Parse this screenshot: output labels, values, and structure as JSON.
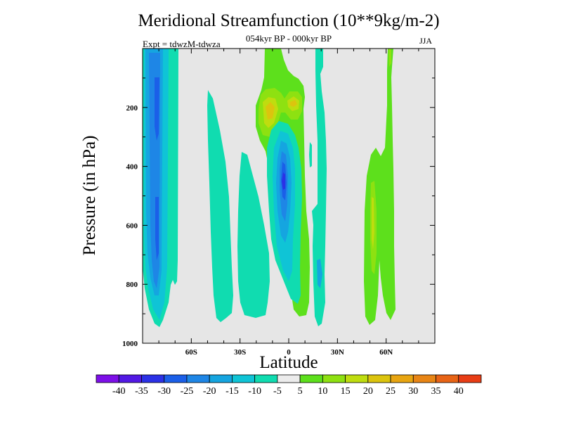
{
  "chart_data": {
    "type": "contour",
    "title": "Meridional Streamfunction (10**9kg/m-2)",
    "subtitle": "054kyr BP - 000kyr BP",
    "experiment_label": "Expt = tdwzM-tdwza",
    "season": "JJA",
    "xlabel": "Latitude",
    "ylabel": "Pressure (in hPa)",
    "xlim": [
      -90,
      90
    ],
    "ylim": [
      1000,
      0
    ],
    "y_scale": "linear-inverted",
    "x_ticks": [
      {
        "value": -60,
        "label": "60S"
      },
      {
        "value": -30,
        "label": "30S"
      },
      {
        "value": 0,
        "label": "0"
      },
      {
        "value": 30,
        "label": "30N"
      },
      {
        "value": 60,
        "label": "60N"
      }
    ],
    "y_ticks": [
      {
        "value": 200,
        "label": "200"
      },
      {
        "value": 400,
        "label": "400"
      },
      {
        "value": 600,
        "label": "600"
      },
      {
        "value": 800,
        "label": "800"
      },
      {
        "value": 1000,
        "label": "1000"
      }
    ],
    "background_color": "#e6e6e6",
    "colorbar": {
      "levels": [
        -40,
        -35,
        -30,
        -25,
        -20,
        -15,
        -10,
        -5,
        5,
        10,
        15,
        20,
        25,
        30,
        35,
        40
      ],
      "colors": [
        "#7d0fe8",
        "#5219e4",
        "#2b31e6",
        "#1b5fe8",
        "#1e86e6",
        "#15a5e0",
        "#0fc4d6",
        "#10dcb0",
        "#ececec",
        "#5de01c",
        "#8ee111",
        "#bfdd0f",
        "#dcc40e",
        "#e8a511",
        "#e88515",
        "#e86416",
        "#e83d15"
      ]
    },
    "features": [
      {
        "kind": "positive-cell",
        "label": "NH tropical upper cell",
        "lat_range": [
          -13,
          7
        ],
        "p_range": [
          20,
          280
        ],
        "peak_band": "15 to 20",
        "peak_lat": -11,
        "peak_p": 220
      },
      {
        "kind": "negative-cell",
        "label": "Equatorial mid-level cell",
        "lat_range": [
          -8,
          10
        ],
        "p_range": [
          280,
          910
        ],
        "peak_band": "-30 to -25",
        "peak_lat": 0,
        "peak_p": 450
      },
      {
        "kind": "negative-cell",
        "label": "SH high-latitude cell",
        "lat_range": [
          -89,
          -72
        ],
        "p_range": [
          20,
          945
        ],
        "peak_band": "-30 to -25",
        "peak_lat": -81,
        "peak_p": 350
      },
      {
        "kind": "negative-cell",
        "label": "SH midlatitude cell",
        "lat_range": [
          -52,
          -40
        ],
        "p_range": [
          180,
          930
        ],
        "peak_band": "-10 to -5"
      },
      {
        "kind": "negative-cell",
        "label": "SH subtropical cell",
        "lat_range": [
          -34,
          -18
        ],
        "p_range": [
          360,
          900
        ],
        "peak_band": "-10 to -5"
      },
      {
        "kind": "positive-cell",
        "label": "NH midlatitude cell",
        "lat_range": [
          48,
          65
        ],
        "p_range": [
          20,
          920
        ],
        "peak_band": "15 to 20",
        "peak_lat": 54,
        "peak_p": 600
      }
    ]
  }
}
